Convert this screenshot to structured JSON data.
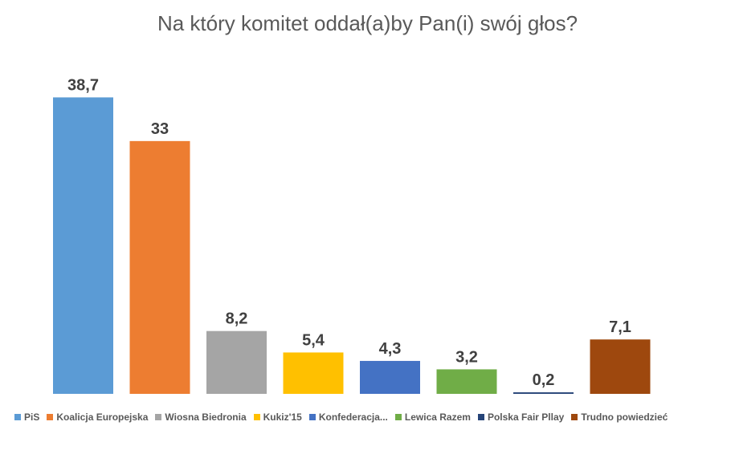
{
  "chart_data": {
    "type": "bar",
    "title": "Na który komitet oddał(a)by Pan(i) swój głos?",
    "categories": [
      "PiS",
      "Koalicja Europejska",
      "Wiosna Biedronia",
      "Kukiz'15",
      "Konfederacja...",
      "Lewica Razem",
      "Polska Fair Pllay",
      "Trudno powiedzieć"
    ],
    "values": [
      38.7,
      33,
      8.2,
      5.4,
      4.3,
      3.2,
      0.2,
      7.1
    ],
    "value_labels": [
      "38,7",
      "33",
      "8,2",
      "5,4",
      "4,3",
      "3,2",
      "0,2",
      "7,1"
    ],
    "colors": [
      "#5B9BD5",
      "#ED7D31",
      "#A5A5A5",
      "#FFC000",
      "#4472C4",
      "#70AD47",
      "#264478",
      "#9E480E"
    ],
    "ylim": [
      0,
      40
    ],
    "grid": false,
    "legend_position": "bottom",
    "xlabel": "",
    "ylabel": ""
  }
}
